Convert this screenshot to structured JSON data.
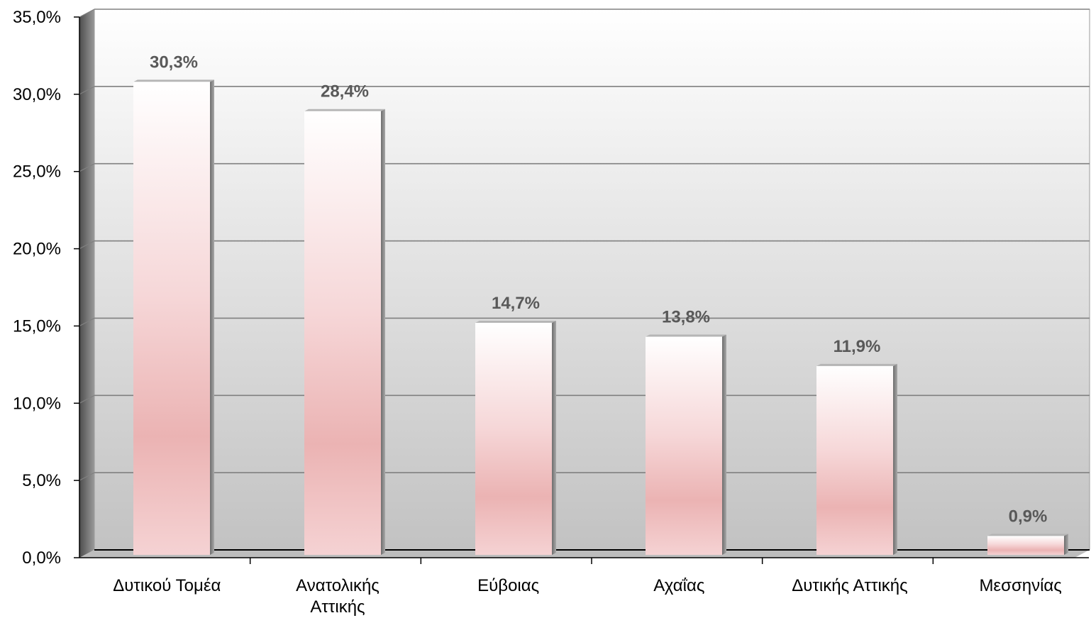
{
  "chart_data": {
    "type": "bar",
    "categories": [
      [
        "Δυτικού Τομέα"
      ],
      [
        "Ανατολικής",
        "Αττικής"
      ],
      [
        "Εύβοιας"
      ],
      [
        "Αχαΐας"
      ],
      [
        "Δυτικής Αττικής"
      ],
      [
        "Μεσσηνίας"
      ]
    ],
    "values": [
      30.3,
      28.4,
      14.7,
      13.8,
      11.9,
      0.9
    ],
    "data_labels": [
      "30,3%",
      "28,4%",
      "14,7%",
      "13,8%",
      "11,9%",
      "0,9%"
    ],
    "ylim": [
      0,
      35
    ],
    "yticks": [
      0,
      5,
      10,
      15,
      20,
      25,
      30,
      35
    ],
    "ytick_labels": [
      "0,0%",
      "5,0%",
      "10,0%",
      "15,0%",
      "20,0%",
      "25,0%",
      "30,0%",
      "35,0%"
    ],
    "title": "",
    "xlabel": "",
    "ylabel": "",
    "grid": true,
    "legend": "none",
    "colors": {
      "bar_top": "#ffffff",
      "bar_mid": "#ebb3b3",
      "bar_side": "#8a8a8a",
      "wall_top": "#ffffff",
      "wall_bottom": "#c2c2c2",
      "gridline": "#808080",
      "axis": "#000000"
    }
  }
}
